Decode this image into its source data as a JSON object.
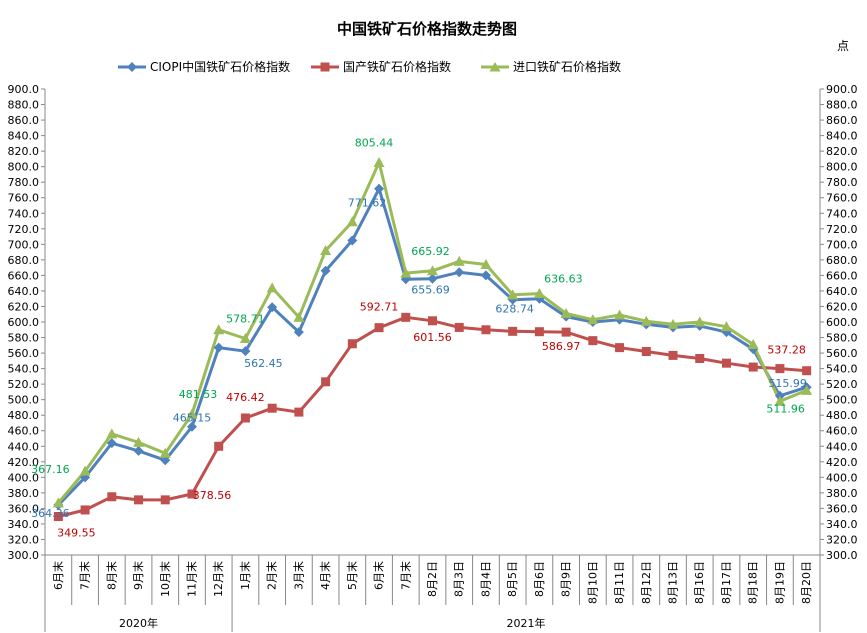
{
  "colors": {
    "ciopi": "#4f81bd",
    "domestic": "#c0504d",
    "imported": "#9bbb59",
    "label_ciopi": "#2e75b6",
    "label_domestic": "#c00000",
    "label_imported": "#00a650"
  },
  "chart_data": {
    "type": "line",
    "title": "中国铁矿石价格指数走势图",
    "unit": "点",
    "legend_position": "top",
    "grid": false,
    "ylim": [
      300,
      900
    ],
    "yticks": [
      "300.0",
      "320.0",
      "340.0",
      "360.0",
      "380.0",
      "400.0",
      "420.0",
      "440.0",
      "460.0",
      "480.0",
      "500.0",
      "520.0",
      "540.0",
      "560.0",
      "580.0",
      "600.0",
      "620.0",
      "640.0",
      "660.0",
      "680.0",
      "700.0",
      "720.0",
      "740.0",
      "760.0",
      "780.0",
      "800.0",
      "820.0",
      "840.0",
      "860.0",
      "880.0",
      "900.0"
    ],
    "categories": [
      "6月末",
      "7月末",
      "8月末",
      "9月末",
      "10月末",
      "11月末",
      "12月末",
      "1月末",
      "2月末",
      "3月末",
      "4月末",
      "5月末",
      "6月末",
      "7月末",
      "8月2日",
      "8月3日",
      "8月4日",
      "8月5日",
      "8月6日",
      "8月9日",
      "8月10日",
      "8月11日",
      "8月12日",
      "8月13日",
      "8月16日",
      "8月17日",
      "8月18日",
      "8月19日",
      "8月20日"
    ],
    "year_groups": [
      {
        "label": "2020年",
        "start": 0,
        "end": 6
      },
      {
        "label": "2021年",
        "start": 7,
        "end": 28
      }
    ],
    "series": [
      {
        "name": "CIOPI中国铁矿石价格指数",
        "color_key": "ciopi",
        "marker": "diamond",
        "values": [
          364.36,
          400,
          444,
          434,
          422,
          465.15,
          567,
          562.45,
          619,
          587,
          666,
          705,
          771.62,
          655,
          655.69,
          664,
          660,
          628.74,
          630,
          607,
          600,
          603,
          597,
          593,
          595,
          587,
          565,
          505,
          515.99
        ]
      },
      {
        "name": "国产铁矿石价格指数",
        "color_key": "domestic",
        "marker": "square",
        "values": [
          349.55,
          358,
          375,
          371,
          371,
          378.56,
          440,
          476.42,
          489,
          484,
          523,
          572,
          592.71,
          606,
          601.56,
          593,
          590,
          588,
          587.5,
          586.97,
          576,
          567,
          562,
          557,
          553,
          547,
          542,
          540,
          537.28
        ]
      },
      {
        "name": "进口铁矿石价格指数",
        "color_key": "imported",
        "marker": "triangle",
        "values": [
          367.16,
          408,
          456,
          445,
          431,
          481.53,
          590,
          578.71,
          644,
          606,
          692,
          729,
          805.44,
          663,
          665.92,
          678,
          674,
          635,
          636.63,
          611,
          603,
          609,
          601,
          597,
          600,
          594,
          571,
          498,
          511.96
        ]
      }
    ],
    "annotations": [
      {
        "series": 1,
        "index": 0,
        "text": "349.55",
        "color_key": "label_domestic"
      },
      {
        "series": 1,
        "index": 5,
        "text": "378.56",
        "color_key": "label_domestic"
      },
      {
        "series": 1,
        "index": 7,
        "text": "476.42",
        "color_key": "label_domestic"
      },
      {
        "series": 1,
        "index": 12,
        "text": "592.71",
        "color_key": "label_domestic"
      },
      {
        "series": 1,
        "index": 14,
        "text": "601.56",
        "color_key": "label_domestic"
      },
      {
        "series": 1,
        "index": 19,
        "text": "586.97",
        "color_key": "label_domestic"
      },
      {
        "series": 1,
        "index": 28,
        "text": "537.28",
        "color_key": "label_domestic"
      },
      {
        "series": 0,
        "index": 0,
        "text": "364.36",
        "color_key": "label_ciopi"
      },
      {
        "series": 0,
        "index": 5,
        "text": "465.15",
        "color_key": "label_ciopi"
      },
      {
        "series": 0,
        "index": 7,
        "text": "562.45",
        "color_key": "label_ciopi"
      },
      {
        "series": 0,
        "index": 12,
        "text": "771.62",
        "color_key": "label_ciopi"
      },
      {
        "series": 0,
        "index": 14,
        "text": "655.69",
        "color_key": "label_ciopi"
      },
      {
        "series": 0,
        "index": 17,
        "text": "628.74",
        "color_key": "label_ciopi"
      },
      {
        "series": 0,
        "index": 28,
        "text": "515.99",
        "color_key": "label_ciopi"
      },
      {
        "series": 2,
        "index": 0,
        "text": "367.16",
        "color_key": "label_imported"
      },
      {
        "series": 2,
        "index": 5,
        "text": "481.53",
        "color_key": "label_imported"
      },
      {
        "series": 2,
        "index": 7,
        "text": "578.71",
        "color_key": "label_imported"
      },
      {
        "series": 2,
        "index": 12,
        "text": "805.44",
        "color_key": "label_imported"
      },
      {
        "series": 2,
        "index": 14,
        "text": "665.92",
        "color_key": "label_imported"
      },
      {
        "series": 2,
        "index": 18,
        "text": "636.63",
        "color_key": "label_imported"
      },
      {
        "series": 2,
        "index": 28,
        "text": "511.96",
        "color_key": "label_imported"
      }
    ]
  }
}
